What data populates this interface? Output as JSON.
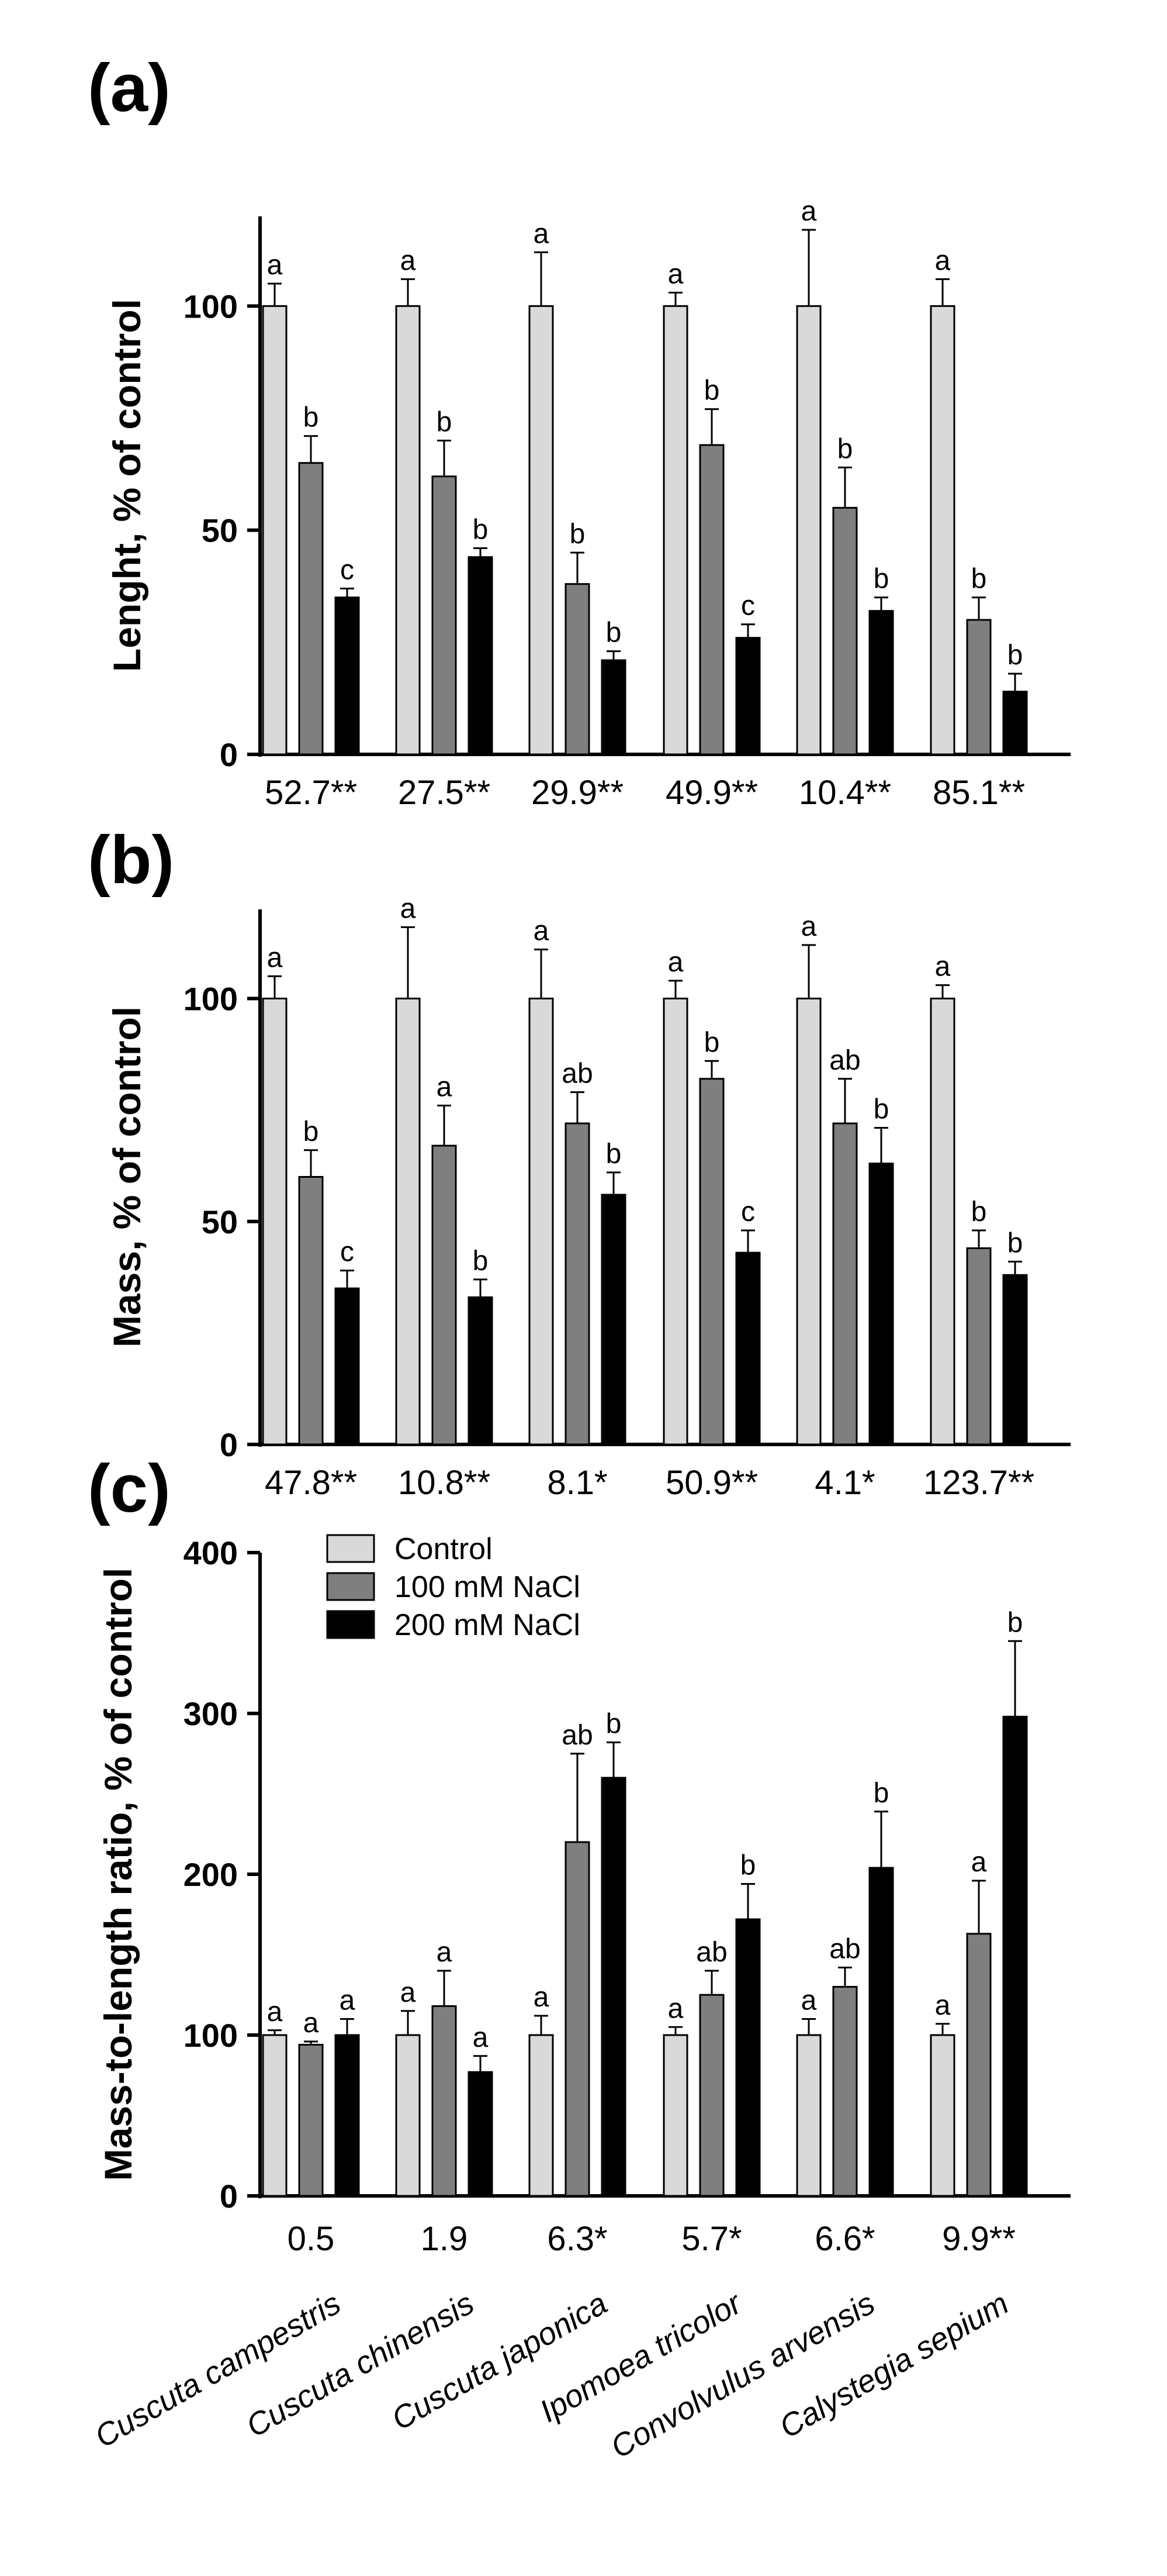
{
  "legend": [
    {
      "name": "Control",
      "color": "#d9d9d9"
    },
    {
      "name": "100 mM NaCl",
      "color": "#7f7f7f"
    },
    {
      "name": "200 mM NaCl",
      "color": "#000000"
    }
  ],
  "chart_data": [
    {
      "type": "bar",
      "panel_label": "(a)",
      "ylabel": "Lenght, % of control",
      "ylim": [
        0,
        120
      ],
      "yticks": [
        0,
        50,
        100
      ],
      "ytick_labels": [
        "0",
        "50",
        "100"
      ],
      "categories": [
        "Cuscuta campestris",
        "Cuscuta chinensis",
        "Cuscuta japonica",
        "Ipomoea tricolor",
        "Convolvulus arvensis",
        "Calystegia sepium"
      ],
      "category_values": [
        "52.7**",
        "27.5**",
        "29.9**",
        "49.9**",
        "10.4**",
        "85.1**"
      ],
      "series": [
        {
          "name": "Control",
          "color": "#d9d9d9",
          "values": [
            100,
            100,
            100,
            100,
            100,
            100
          ],
          "errors": [
            5,
            6,
            12,
            3,
            17,
            6
          ],
          "letters": [
            "a",
            "a",
            "a",
            "a",
            "a",
            "a"
          ]
        },
        {
          "name": "100 mM NaCl",
          "color": "#7f7f7f",
          "values": [
            65,
            62,
            38,
            69,
            55,
            30
          ],
          "errors": [
            6,
            8,
            7,
            8,
            9,
            5
          ],
          "letters": [
            "b",
            "b",
            "b",
            "b",
            "b",
            "b"
          ]
        },
        {
          "name": "200 mM NaCl",
          "color": "#000000",
          "values": [
            35,
            44,
            21,
            26,
            32,
            14
          ],
          "errors": [
            2,
            2,
            2,
            3,
            3,
            4
          ],
          "letters": [
            "c",
            "b",
            "b",
            "c",
            "b",
            "b"
          ]
        }
      ]
    },
    {
      "type": "bar",
      "panel_label": "(b)",
      "ylabel": "Mass, % of control",
      "ylim": [
        0,
        120
      ],
      "yticks": [
        0,
        50,
        100
      ],
      "ytick_labels": [
        "0",
        "50",
        "100"
      ],
      "categories": [
        "Cuscuta campestris",
        "Cuscuta chinensis",
        "Cuscuta japonica",
        "Ipomoea tricolor",
        "Convolvulus arvensis",
        "Calystegia sepium"
      ],
      "category_values": [
        "47.8**",
        "10.8**",
        "8.1*",
        "50.9**",
        "4.1*",
        "123.7**"
      ],
      "series": [
        {
          "name": "Control",
          "color": "#d9d9d9",
          "values": [
            100,
            100,
            100,
            100,
            100,
            100
          ],
          "errors": [
            5,
            16,
            11,
            4,
            12,
            3
          ],
          "letters": [
            "a",
            "a",
            "a",
            "a",
            "a",
            "a"
          ]
        },
        {
          "name": "100 mM NaCl",
          "color": "#7f7f7f",
          "values": [
            60,
            67,
            72,
            82,
            72,
            44
          ],
          "errors": [
            6,
            9,
            7,
            4,
            10,
            4
          ],
          "letters": [
            "b",
            "a",
            "ab",
            "b",
            "ab",
            "b"
          ]
        },
        {
          "name": "200 mM NaCl",
          "color": "#000000",
          "values": [
            35,
            33,
            56,
            43,
            63,
            38
          ],
          "errors": [
            4,
            4,
            5,
            5,
            8,
            3
          ],
          "letters": [
            "c",
            "b",
            "b",
            "c",
            "b",
            "b"
          ]
        }
      ]
    },
    {
      "type": "bar",
      "panel_label": "(c)",
      "ylabel": "Mass-to-length ratio, % of control",
      "ylim": [
        0,
        400
      ],
      "yticks": [
        0,
        100,
        200,
        300,
        400
      ],
      "ytick_labels": [
        "0",
        "100",
        "200",
        "300",
        "400"
      ],
      "categories": [
        "Cuscuta campestris",
        "Cuscuta chinensis",
        "Cuscuta japonica",
        "Ipomoea tricolor",
        "Convolvulus arvensis",
        "Calystegia sepium"
      ],
      "category_values": [
        "0.5",
        "1.9",
        "6.3*",
        "5.7*",
        "6.6*",
        "9.9**"
      ],
      "series": [
        {
          "name": "Control",
          "color": "#d9d9d9",
          "values": [
            100,
            100,
            100,
            100,
            100,
            100
          ],
          "errors": [
            3,
            15,
            12,
            5,
            10,
            7
          ],
          "letters": [
            "a",
            "a",
            "a",
            "a",
            "a",
            "a"
          ]
        },
        {
          "name": "100 mM NaCl",
          "color": "#7f7f7f",
          "values": [
            94,
            118,
            220,
            125,
            130,
            163
          ],
          "errors": [
            2,
            22,
            55,
            15,
            12,
            33
          ],
          "letters": [
            "a",
            "a",
            "ab",
            "ab",
            "ab",
            "a"
          ]
        },
        {
          "name": "200 mM NaCl",
          "color": "#000000",
          "values": [
            100,
            77,
            260,
            172,
            204,
            298
          ],
          "errors": [
            10,
            10,
            22,
            22,
            35,
            47
          ],
          "letters": [
            "a",
            "a",
            "b",
            "b",
            "b",
            "b"
          ]
        }
      ]
    }
  ]
}
